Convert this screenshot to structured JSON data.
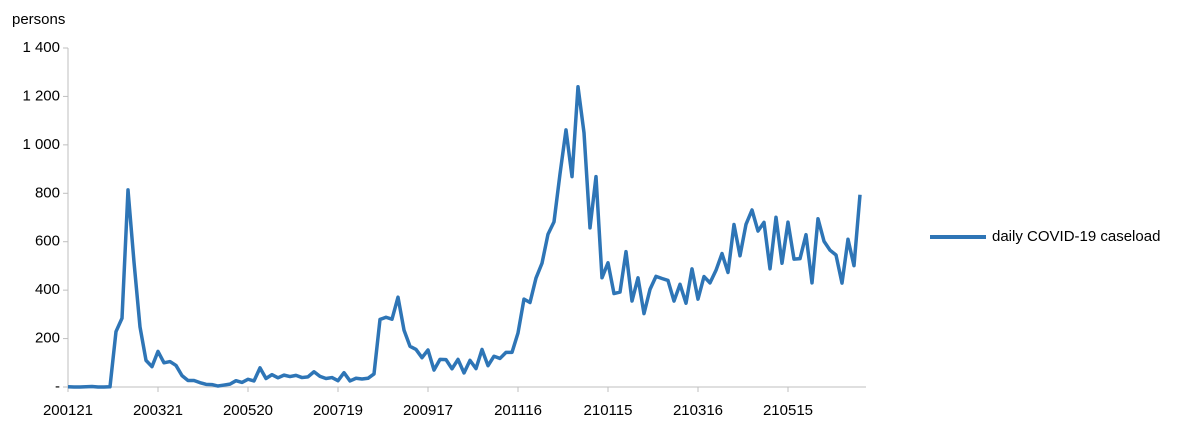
{
  "chart_data": {
    "type": "line",
    "y_label": "persons",
    "categories": [
      "200121",
      null,
      null,
      null,
      null,
      null,
      null,
      null,
      null,
      null,
      null,
      null,
      null,
      null,
      null,
      "200321",
      null,
      null,
      null,
      null,
      null,
      null,
      null,
      null,
      null,
      null,
      null,
      null,
      null,
      null,
      "200520",
      null,
      null,
      null,
      null,
      null,
      null,
      null,
      null,
      null,
      null,
      null,
      null,
      null,
      null,
      "200719",
      null,
      null,
      null,
      null,
      null,
      null,
      null,
      null,
      null,
      null,
      null,
      null,
      null,
      null,
      "200917",
      null,
      null,
      null,
      null,
      null,
      null,
      null,
      null,
      null,
      null,
      null,
      null,
      null,
      null,
      "201116",
      null,
      null,
      null,
      null,
      null,
      null,
      null,
      null,
      null,
      null,
      null,
      null,
      null,
      null,
      "210115",
      null,
      null,
      null,
      null,
      null,
      null,
      null,
      null,
      null,
      null,
      null,
      null,
      null,
      null,
      "210316",
      null,
      null,
      null,
      null,
      null,
      null,
      null,
      null,
      null,
      null,
      null,
      null,
      null,
      null,
      "210515",
      null,
      null,
      null,
      null,
      null,
      null,
      null,
      null,
      null,
      null,
      null,
      null
    ],
    "series": [
      {
        "name": "daily COVID-19 caseload",
        "color": "#2e75b6",
        "values": [
          1,
          0,
          0,
          1,
          2,
          0,
          0,
          1,
          229,
          284,
          814,
          516,
          248,
          110,
          84,
          147,
          100,
          105,
          89,
          47,
          27,
          27,
          18,
          11,
          10,
          4,
          8,
          12,
          26,
          19,
          32,
          25,
          79,
          35,
          51,
          38,
          49,
          43,
          48,
          39,
          42,
          63,
          44,
          35,
          39,
          26,
          59,
          25,
          36,
          33,
          36,
          54,
          279,
          288,
          280,
          371,
          235,
          168,
          155,
          121,
          153,
          70,
          114,
          113,
          75,
          114,
          58,
          110,
          76,
          155,
          88,
          127,
          118,
          143,
          143,
          223,
          363,
          349,
          450,
          511,
          631,
          682,
          880,
          1062,
          869,
          1240,
          1050,
          657,
          869,
          451,
          513,
          386,
          392,
          559,
          355,
          451,
          303,
          403,
          457,
          448,
          440,
          355,
          424,
          346,
          488,
          363,
          456,
          430,
          482,
          551,
          473,
          671,
          542,
          672,
          731,
          644,
          680,
          488,
          701,
          511,
          681,
          528,
          530,
          629,
          430,
          695,
          602,
          565,
          545,
          429,
          610,
          501,
          794
        ]
      }
    ],
    "ylim": [
      0,
      1400
    ],
    "yticks": [
      {
        "value": 0,
        "label": "-"
      },
      200,
      400,
      600,
      800,
      {
        "value": 1000,
        "label": "1 000"
      },
      {
        "value": 1200,
        "label": "1 200"
      },
      {
        "value": 1400,
        "label": "1 400"
      }
    ],
    "grid": false,
    "legend": "right"
  }
}
